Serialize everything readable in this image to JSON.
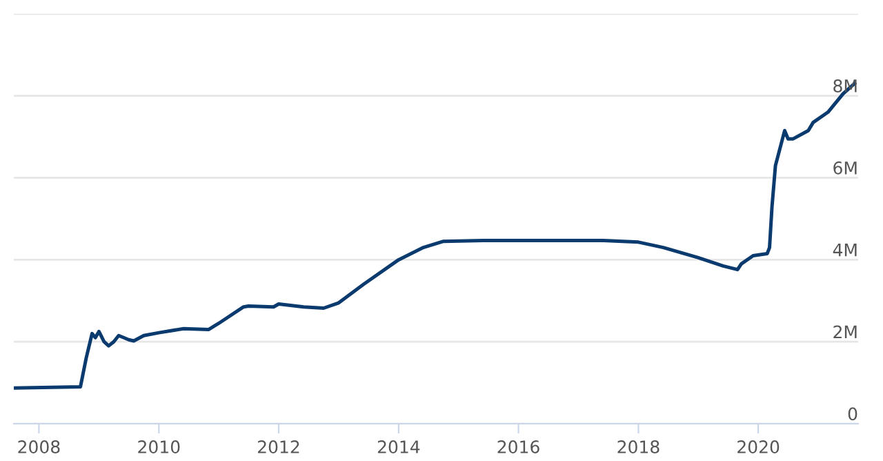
{
  "chart_data": {
    "type": "line",
    "x": [
      "2007-08-01",
      "2008-09-10",
      "2008-09-20",
      "2008-10-15",
      "2008-11-20",
      "2008-12-10",
      "2009-01-01",
      "2009-02-01",
      "2009-03-01",
      "2009-04-01",
      "2009-05-01",
      "2009-06-01",
      "2009-07-01",
      "2009-08-01",
      "2009-10-01",
      "2010-01-01",
      "2010-06-01",
      "2010-11-01",
      "2011-01-01",
      "2011-06-01",
      "2011-07-01",
      "2011-12-01",
      "2012-01-01",
      "2012-06-01",
      "2012-10-01",
      "2013-01-01",
      "2013-06-01",
      "2014-01-01",
      "2014-06-01",
      "2014-10-01",
      "2015-06-01",
      "2016-06-01",
      "2017-06-01",
      "2018-01-01",
      "2018-06-01",
      "2019-01-01",
      "2019-06-01",
      "2019-08-28",
      "2019-09-20",
      "2019-12-01",
      "2020-02-25",
      "2020-03-10",
      "2020-03-25",
      "2020-04-15",
      "2020-06-10",
      "2020-07-01",
      "2020-08-01",
      "2020-11-01",
      "2020-12-01",
      "2021-03-01",
      "2021-06-01",
      "2021-08-10"
    ],
    "series": [
      {
        "color": "#0b3a6e",
        "values": [
          870000,
          900000,
          1100000,
          1600000,
          2200000,
          2100000,
          2250000,
          2000000,
          1900000,
          2000000,
          2150000,
          2100000,
          2050000,
          2020000,
          2150000,
          2220000,
          2320000,
          2300000,
          2450000,
          2850000,
          2870000,
          2850000,
          2920000,
          2850000,
          2820000,
          2950000,
          3400000,
          4000000,
          4300000,
          4450000,
          4470000,
          4470000,
          4470000,
          4430000,
          4300000,
          4050000,
          3850000,
          3760000,
          3900000,
          4100000,
          4150000,
          4300000,
          5300000,
          6300000,
          7150000,
          6950000,
          6950000,
          7150000,
          7350000,
          7600000,
          8050000,
          8300000
        ]
      }
    ],
    "xlim": [
      "2007-08-01",
      "2021-09-01"
    ],
    "xticks": [
      {
        "value": "2008-01-01",
        "label": "2008"
      },
      {
        "value": "2010-01-01",
        "label": "2010"
      },
      {
        "value": "2012-01-01",
        "label": "2012"
      },
      {
        "value": "2014-01-01",
        "label": "2014"
      },
      {
        "value": "2016-01-01",
        "label": "2016"
      },
      {
        "value": "2018-01-01",
        "label": "2018"
      },
      {
        "value": "2020-01-01",
        "label": "2020"
      }
    ],
    "ylim": [
      0,
      10000000
    ],
    "yticks": [
      0,
      {
        "value": 2000000,
        "label": "2M"
      },
      {
        "value": 4000000,
        "label": "4M"
      },
      {
        "value": 6000000,
        "label": "6M"
      },
      {
        "value": 8000000,
        "label": "8M"
      },
      {
        "value": 10000000,
        "label": null
      }
    ],
    "grid": "y",
    "legend": false,
    "line_style": "solid",
    "marker": "none"
  }
}
